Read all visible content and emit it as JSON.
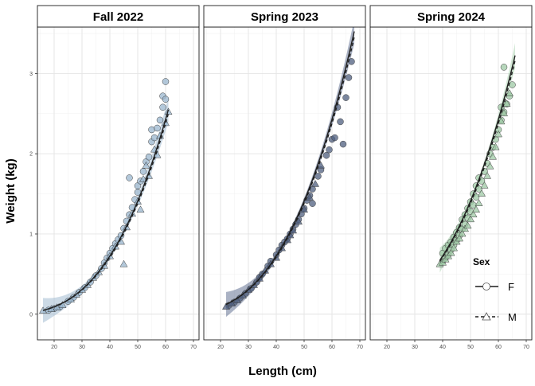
{
  "chart_data": {
    "type": "scatter",
    "xlabel": "Length (cm)",
    "ylabel": "Weight (kg)",
    "xlim": [
      14,
      72
    ],
    "ylim": [
      -0.32,
      3.58
    ],
    "x_ticks": [
      20,
      30,
      40,
      50,
      60,
      70
    ],
    "y_ticks": [
      0,
      1,
      2,
      3
    ],
    "grid": true,
    "legend": {
      "title": "Sex",
      "placement": "bottom-right",
      "entries": [
        {
          "label": "F",
          "shape": "circle",
          "line": "solid"
        },
        {
          "label": "M",
          "shape": "triangle",
          "line": "dashed"
        }
      ]
    },
    "fit": {
      "model": "power",
      "a": 1.22e-05,
      "b": 2.98
    },
    "panels": [
      {
        "title": "Fall 2022",
        "color": "#9ab5cd",
        "ribbon_color": "#9ab5cd",
        "fit_range": [
          16,
          61
        ],
        "F": [
          [
            18,
            0.05
          ],
          [
            20,
            0.07
          ],
          [
            22,
            0.09
          ],
          [
            25,
            0.16
          ],
          [
            27,
            0.21
          ],
          [
            29,
            0.27
          ],
          [
            31,
            0.33
          ],
          [
            33,
            0.4
          ],
          [
            35,
            0.48
          ],
          [
            37,
            0.57
          ],
          [
            38,
            0.64
          ],
          [
            39,
            0.7
          ],
          [
            40,
            0.76
          ],
          [
            41,
            0.82
          ],
          [
            42,
            0.88
          ],
          [
            43,
            0.93
          ],
          [
            44,
            0.98
          ],
          [
            45,
            1.07
          ],
          [
            46,
            1.16
          ],
          [
            47,
            1.24
          ],
          [
            47,
            1.7
          ],
          [
            48,
            1.33
          ],
          [
            49,
            1.43
          ],
          [
            50,
            1.52
          ],
          [
            50,
            1.6
          ],
          [
            51,
            1.66
          ],
          [
            52,
            1.78
          ],
          [
            53,
            1.9
          ],
          [
            54,
            1.96
          ],
          [
            55,
            2.15
          ],
          [
            55,
            2.3
          ],
          [
            56,
            2.2
          ],
          [
            57,
            2.32
          ],
          [
            58,
            2.42
          ],
          [
            59,
            2.58
          ],
          [
            59,
            2.72
          ],
          [
            60,
            2.9
          ],
          [
            60,
            2.68
          ]
        ],
        "M": [
          [
            16,
            0.04
          ],
          [
            19,
            0.06
          ],
          [
            21,
            0.08
          ],
          [
            23,
            0.11
          ],
          [
            26,
            0.18
          ],
          [
            28,
            0.24
          ],
          [
            30,
            0.3
          ],
          [
            32,
            0.36
          ],
          [
            34,
            0.45
          ],
          [
            36,
            0.52
          ],
          [
            38,
            0.6
          ],
          [
            40,
            0.72
          ],
          [
            42,
            0.84
          ],
          [
            44,
            0.9
          ],
          [
            45,
            0.62
          ],
          [
            46,
            1.08
          ],
          [
            48,
            1.25
          ],
          [
            50,
            1.4
          ],
          [
            51,
            1.3
          ],
          [
            52,
            1.68
          ],
          [
            53,
            1.85
          ],
          [
            54,
            1.72
          ],
          [
            56,
            2.05
          ],
          [
            57,
            1.98
          ],
          [
            58,
            2.22
          ],
          [
            60,
            2.38
          ],
          [
            61,
            2.52
          ]
        ]
      },
      {
        "title": "Spring 2023",
        "color": "#4f5f7f",
        "ribbon_color": "#55658a",
        "fit_range": [
          22,
          68
        ],
        "F": [
          [
            23,
            0.11
          ],
          [
            25,
            0.15
          ],
          [
            27,
            0.2
          ],
          [
            29,
            0.26
          ],
          [
            31,
            0.32
          ],
          [
            33,
            0.4
          ],
          [
            34,
            0.46
          ],
          [
            35,
            0.5
          ],
          [
            37,
            0.6
          ],
          [
            38,
            0.66
          ],
          [
            40,
            0.74
          ],
          [
            41,
            0.8
          ],
          [
            42,
            0.86
          ],
          [
            43,
            0.9
          ],
          [
            44,
            0.94
          ],
          [
            45,
            1.0
          ],
          [
            46,
            1.06
          ],
          [
            47,
            1.12
          ],
          [
            48,
            1.18
          ],
          [
            49,
            1.25
          ],
          [
            50,
            1.32
          ],
          [
            51,
            1.42
          ],
          [
            52,
            1.48
          ],
          [
            53,
            1.56
          ],
          [
            53,
            1.38
          ],
          [
            55,
            1.72
          ],
          [
            56,
            1.8
          ],
          [
            58,
            1.98
          ],
          [
            59,
            2.05
          ],
          [
            60,
            2.18
          ],
          [
            61,
            2.2
          ],
          [
            62,
            2.58
          ],
          [
            63,
            2.4
          ],
          [
            64,
            2.12
          ],
          [
            65,
            2.7
          ],
          [
            66,
            2.95
          ],
          [
            67,
            3.15
          ]
        ],
        "M": [
          [
            22,
            0.09
          ],
          [
            24,
            0.13
          ],
          [
            26,
            0.17
          ],
          [
            28,
            0.23
          ],
          [
            30,
            0.3
          ],
          [
            32,
            0.36
          ],
          [
            34,
            0.44
          ],
          [
            36,
            0.54
          ],
          [
            38,
            0.62
          ],
          [
            40,
            0.7
          ],
          [
            42,
            0.82
          ],
          [
            44,
            0.92
          ],
          [
            45,
            0.98
          ],
          [
            46,
            1.04
          ],
          [
            48,
            1.15
          ],
          [
            50,
            1.3
          ],
          [
            52,
            1.45
          ],
          [
            54,
            1.62
          ],
          [
            56,
            1.85
          ]
        ]
      },
      {
        "title": "Spring 2024",
        "color": "#9fc9a6",
        "ribbon_color": "#a8d1ae",
        "fit_range": [
          39,
          66
        ],
        "F": [
          [
            40,
            0.66
          ],
          [
            40,
            0.76
          ],
          [
            41,
            0.7
          ],
          [
            41,
            0.82
          ],
          [
            42,
            0.74
          ],
          [
            42,
            0.86
          ],
          [
            43,
            0.8
          ],
          [
            43,
            0.9
          ],
          [
            44,
            0.86
          ],
          [
            44,
            0.96
          ],
          [
            45,
            0.92
          ],
          [
            45,
            1.02
          ],
          [
            46,
            0.98
          ],
          [
            46,
            1.08
          ],
          [
            47,
            1.06
          ],
          [
            47,
            1.18
          ],
          [
            48,
            1.12
          ],
          [
            48,
            1.24
          ],
          [
            49,
            1.2
          ],
          [
            49,
            1.32
          ],
          [
            50,
            1.28
          ],
          [
            50,
            1.4
          ],
          [
            51,
            1.36
          ],
          [
            51,
            1.5
          ],
          [
            52,
            1.46
          ],
          [
            52,
            1.6
          ],
          [
            53,
            1.56
          ],
          [
            53,
            1.7
          ],
          [
            54,
            1.66
          ],
          [
            55,
            1.78
          ],
          [
            56,
            1.88
          ],
          [
            57,
            2.0
          ],
          [
            58,
            2.08
          ],
          [
            59,
            2.18
          ],
          [
            60,
            2.3
          ],
          [
            61,
            2.42
          ],
          [
            61,
            2.58
          ],
          [
            62,
            3.08
          ],
          [
            62,
            2.52
          ],
          [
            63,
            2.62
          ],
          [
            64,
            2.72
          ],
          [
            65,
            2.86
          ]
        ],
        "M": [
          [
            39,
            0.62
          ],
          [
            40,
            0.64
          ],
          [
            41,
            0.68
          ],
          [
            42,
            0.72
          ],
          [
            43,
            0.76
          ],
          [
            44,
            0.82
          ],
          [
            45,
            0.9
          ],
          [
            46,
            0.94
          ],
          [
            47,
            1.0
          ],
          [
            48,
            1.06
          ],
          [
            49,
            1.1
          ],
          [
            50,
            1.18
          ],
          [
            51,
            1.24
          ],
          [
            52,
            1.3
          ],
          [
            53,
            1.38
          ],
          [
            54,
            1.5
          ],
          [
            55,
            1.6
          ],
          [
            56,
            1.72
          ],
          [
            57,
            1.84
          ],
          [
            58,
            1.96
          ],
          [
            59,
            2.08
          ],
          [
            60,
            2.24
          ],
          [
            61,
            2.4
          ],
          [
            62,
            2.5
          ],
          [
            63,
            2.62
          ],
          [
            64,
            2.75
          ]
        ]
      }
    ]
  }
}
